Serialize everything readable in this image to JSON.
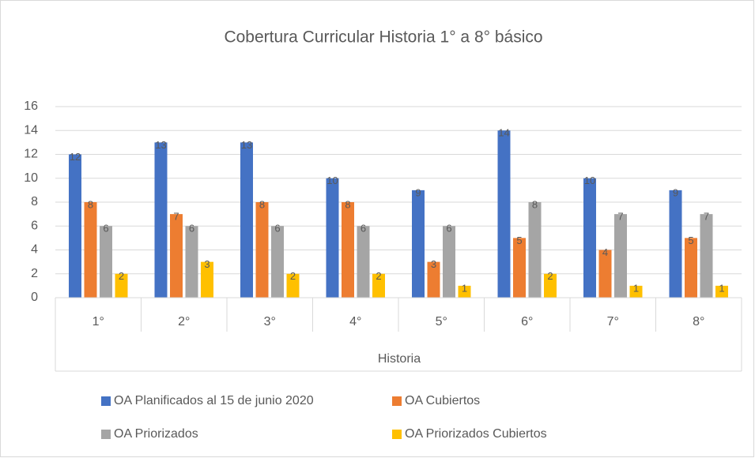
{
  "chart_data": {
    "type": "bar",
    "title": "Cobertura Curricular Historia 1° a 8° básico",
    "x_label": "Historia",
    "categories": [
      "1°",
      "2°",
      "3°",
      "4°",
      "5°",
      "6°",
      "7°",
      "8°"
    ],
    "series": [
      {
        "name": "OA Planificados al 15 de junio 2020",
        "color": "#4472c4",
        "values": [
          12,
          13,
          13,
          10,
          9,
          14,
          10,
          9
        ]
      },
      {
        "name": "OA Cubiertos",
        "color": "#ed7d31",
        "values": [
          8,
          7,
          8,
          8,
          3,
          5,
          4,
          5
        ]
      },
      {
        "name": "OA Priorizados",
        "color": "#a5a5a5",
        "values": [
          6,
          6,
          6,
          6,
          6,
          8,
          7,
          7
        ]
      },
      {
        "name": "OA Priorizados Cubiertos",
        "color": "#ffc000",
        "values": [
          2,
          3,
          2,
          2,
          1,
          2,
          1,
          1
        ]
      }
    ],
    "ylim": [
      0,
      16
    ],
    "yticks": [
      0,
      2,
      4,
      6,
      8,
      10,
      12,
      14,
      16
    ],
    "grid": true,
    "legend": "bottom"
  }
}
